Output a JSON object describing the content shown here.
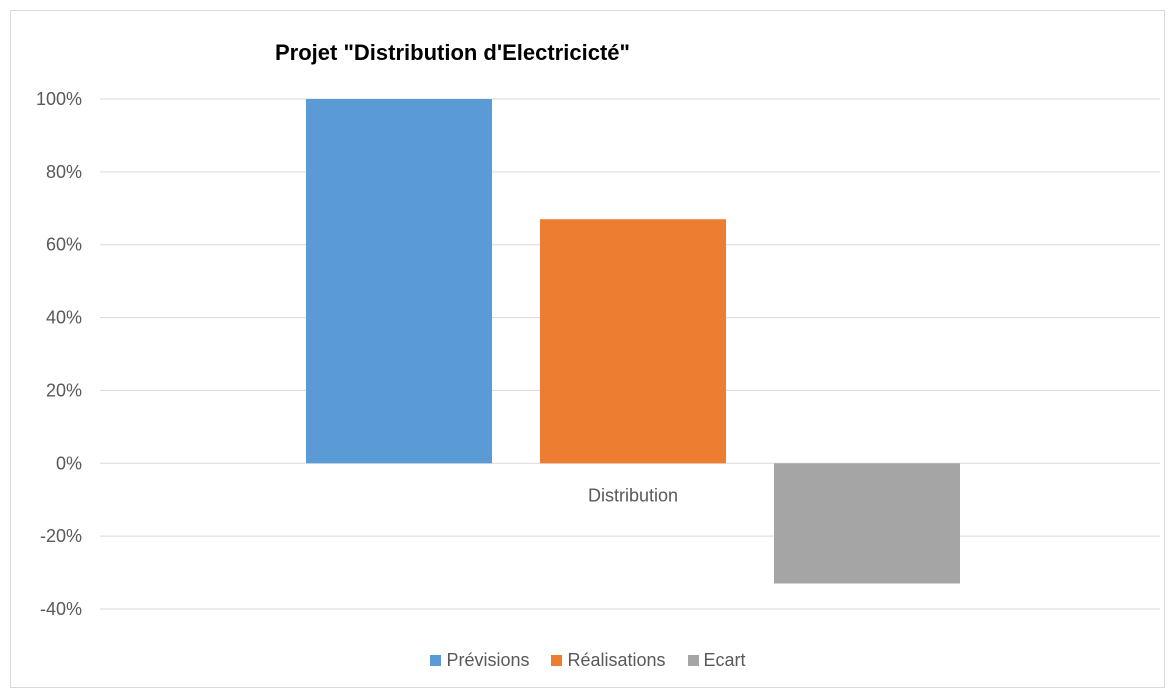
{
  "chart_data": {
    "type": "bar",
    "title": "Projet \"Distribution d'Electricicté\"",
    "categories": [
      "Distribution"
    ],
    "series": [
      {
        "name": "Prévisions",
        "values": [
          1.0
        ],
        "color": "#5b9bd5"
      },
      {
        "name": "Réalisations",
        "values": [
          0.67
        ],
        "color": "#ed7d31"
      },
      {
        "name": "Ecart",
        "values": [
          -0.33
        ],
        "color": "#a5a5a5"
      }
    ],
    "ylim": [
      -0.4,
      1.0
    ],
    "yticks": [
      1.0,
      0.8,
      0.6,
      0.4,
      0.2,
      0.0,
      -0.2,
      -0.4
    ],
    "ytick_labels": [
      "100%",
      "80%",
      "60%",
      "40%",
      "20%",
      "0%",
      "-20%",
      "-40%"
    ],
    "xlabel": "",
    "ylabel": "",
    "grid": true,
    "legend_position": "bottom"
  }
}
